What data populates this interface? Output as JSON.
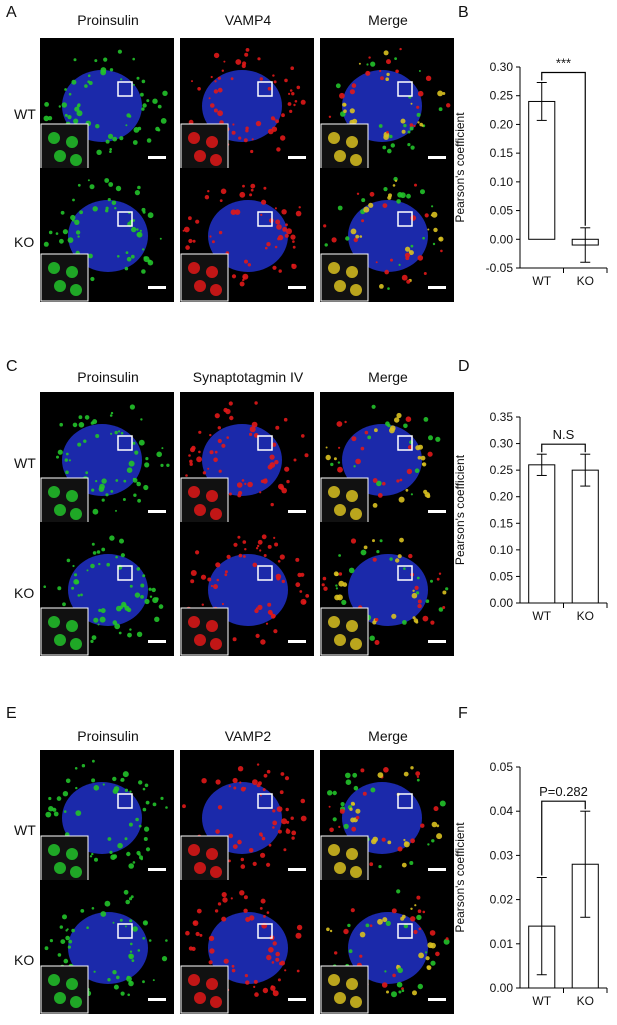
{
  "panels": [
    {
      "letter": "A",
      "columns": [
        "Proinsulin",
        "VAMP4",
        "Merge"
      ],
      "rows": [
        "WT",
        "KO"
      ]
    },
    {
      "letter": "C",
      "columns": [
        "Proinsulin",
        "Synaptotagmin IV",
        "Merge"
      ],
      "rows": [
        "WT",
        "KO"
      ]
    },
    {
      "letter": "E",
      "columns": [
        "Proinsulin",
        "VAMP2",
        "Merge"
      ],
      "rows": [
        "WT",
        "KO"
      ]
    }
  ],
  "chart_letters": [
    "B",
    "D",
    "F"
  ],
  "colors": {
    "blue": "#2030c8",
    "green": "#22c22a",
    "red": "#e01818",
    "yellow": "#d8c020"
  },
  "chart_data": [
    {
      "type": "bar",
      "categories": [
        "WT",
        "KO"
      ],
      "values": [
        0.24,
        -0.01
      ],
      "errors": [
        0.033,
        0.03
      ],
      "ylabel": "Pearson's coefficient",
      "ylim": [
        -0.05,
        0.3
      ],
      "yticks": [
        "0.30",
        "0.25",
        "0.20",
        "0.15",
        "0.10",
        "0.05",
        "0.00",
        "-0.05"
      ],
      "annotation": "***"
    },
    {
      "type": "bar",
      "categories": [
        "WT",
        "KO"
      ],
      "values": [
        0.26,
        0.25
      ],
      "errors": [
        0.02,
        0.03
      ],
      "ylabel": "Pearson's coefficient",
      "ylim": [
        0.0,
        0.35
      ],
      "yticks": [
        "0.35",
        "0.30",
        "0.25",
        "0.20",
        "0.15",
        "0.10",
        "0.05",
        "0.00"
      ],
      "annotation": "N.S"
    },
    {
      "type": "bar",
      "categories": [
        "WT",
        "KO"
      ],
      "values": [
        0.014,
        0.028
      ],
      "errors": [
        0.011,
        0.012
      ],
      "ylabel": "Pearson's coefficient",
      "ylim": [
        0.0,
        0.05
      ],
      "yticks": [
        "0.05",
        "0.04",
        "0.03",
        "0.02",
        "0.01",
        "0.00"
      ],
      "annotation": "P=0.282"
    }
  ]
}
